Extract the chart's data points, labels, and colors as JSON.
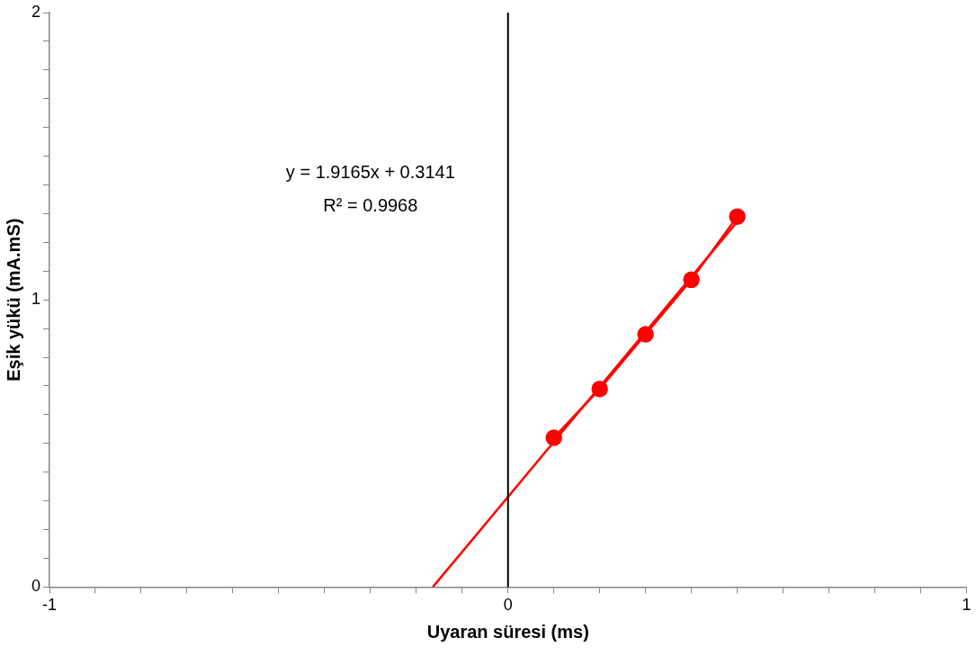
{
  "chart_data": {
    "type": "line",
    "xlabel": "Uyaran süresi (ms)",
    "ylabel": "Eşik yükü (mA.mS)",
    "annotations": [
      "y = 1.9165x + 0.3141",
      "R² = 0.9968"
    ],
    "series": [
      {
        "color": "#ff0000",
        "x": [
          0.1,
          0.2,
          0.3,
          0.4,
          0.5
        ],
        "values": [
          0.52,
          0.69,
          0.88,
          1.07,
          1.29
        ],
        "marker": "circle"
      },
      {
        "color": "#ff0000",
        "x": [
          -0.164,
          0.5
        ],
        "values": [
          0,
          1.272
        ],
        "marker": "none"
      }
    ],
    "xlim": [
      -1,
      1
    ],
    "ylim": [
      0,
      2
    ],
    "xticks": [
      -1,
      {
        "value": -0.9,
        "label": null
      },
      {
        "value": -0.8,
        "label": null
      },
      {
        "value": -0.7,
        "label": null
      },
      {
        "value": -0.6,
        "label": null
      },
      {
        "value": -0.5,
        "label": null
      },
      {
        "value": -0.4,
        "label": null
      },
      {
        "value": -0.3,
        "label": null
      },
      {
        "value": -0.2,
        "label": null
      },
      {
        "value": -0.1,
        "label": null
      },
      0,
      {
        "value": 0.1,
        "label": null
      },
      {
        "value": 0.2,
        "label": null
      },
      {
        "value": 0.3,
        "label": null
      },
      {
        "value": 0.4,
        "label": null
      },
      {
        "value": 0.5,
        "label": null
      },
      {
        "value": 0.6,
        "label": null
      },
      {
        "value": 0.7,
        "label": null
      },
      {
        "value": 0.8,
        "label": null
      },
      {
        "value": 0.9,
        "label": null
      },
      1
    ],
    "yticks": [
      0,
      {
        "value": 0.1,
        "label": null
      },
      {
        "value": 0.2,
        "label": null
      },
      {
        "value": 0.3,
        "label": null
      },
      {
        "value": 0.4,
        "label": null
      },
      {
        "value": 0.5,
        "label": null
      },
      {
        "value": 0.6,
        "label": null
      },
      {
        "value": 0.7,
        "label": null
      },
      {
        "value": 0.8,
        "label": null
      },
      {
        "value": 0.9,
        "label": null
      },
      1,
      {
        "value": 1.1,
        "label": null
      },
      {
        "value": 1.2,
        "label": null
      },
      {
        "value": 1.3,
        "label": null
      },
      {
        "value": 1.4,
        "label": null
      },
      {
        "value": 1.5,
        "label": null
      },
      {
        "value": 1.6,
        "label": null
      },
      {
        "value": 1.7,
        "label": null
      },
      {
        "value": 1.8,
        "label": null
      },
      {
        "value": 1.9,
        "label": null
      },
      2
    ],
    "ref_lines": [
      {
        "axis": "x",
        "value": 0,
        "color": "#000000"
      }
    ],
    "grid": false,
    "legend": false
  }
}
